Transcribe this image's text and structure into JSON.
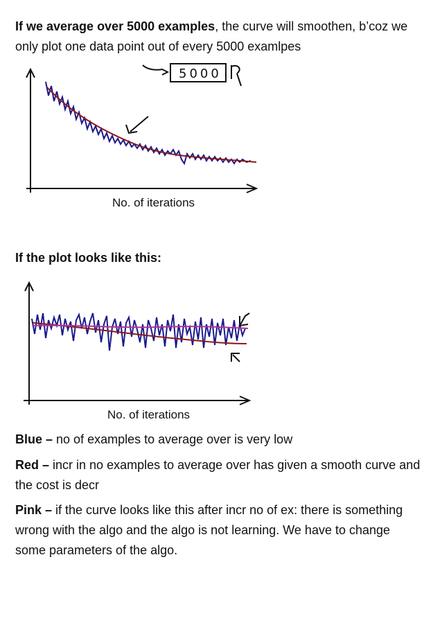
{
  "intro": {
    "bold": "If we average over 5000 examples",
    "rest": ", the curve will smoothen, b’coz we only plot one data point out of every 5000 examlpes"
  },
  "figure1": {
    "handwritten_note": "5000",
    "xlabel": "No. of iterations"
  },
  "heading2": "If the plot looks like this:",
  "figure2": {
    "xlabel": "No. of iterations"
  },
  "legend": [
    {
      "term": "Blue – ",
      "text": "no of examples to average over is very low"
    },
    {
      "term": "Red – ",
      "text": "incr in no examples to average over has given a smooth curve and the cost is decr"
    },
    {
      "term": "Pink – ",
      "text": "if the curve looks like this after incr no of ex: there is something wrong with the algo and the algo is not learning. We have to change some parameters of the algo."
    }
  ],
  "colors": {
    "blue": "#1a1a8c",
    "red": "#8b1a1a",
    "pink": "#b0339a",
    "axis": "#111111"
  }
}
